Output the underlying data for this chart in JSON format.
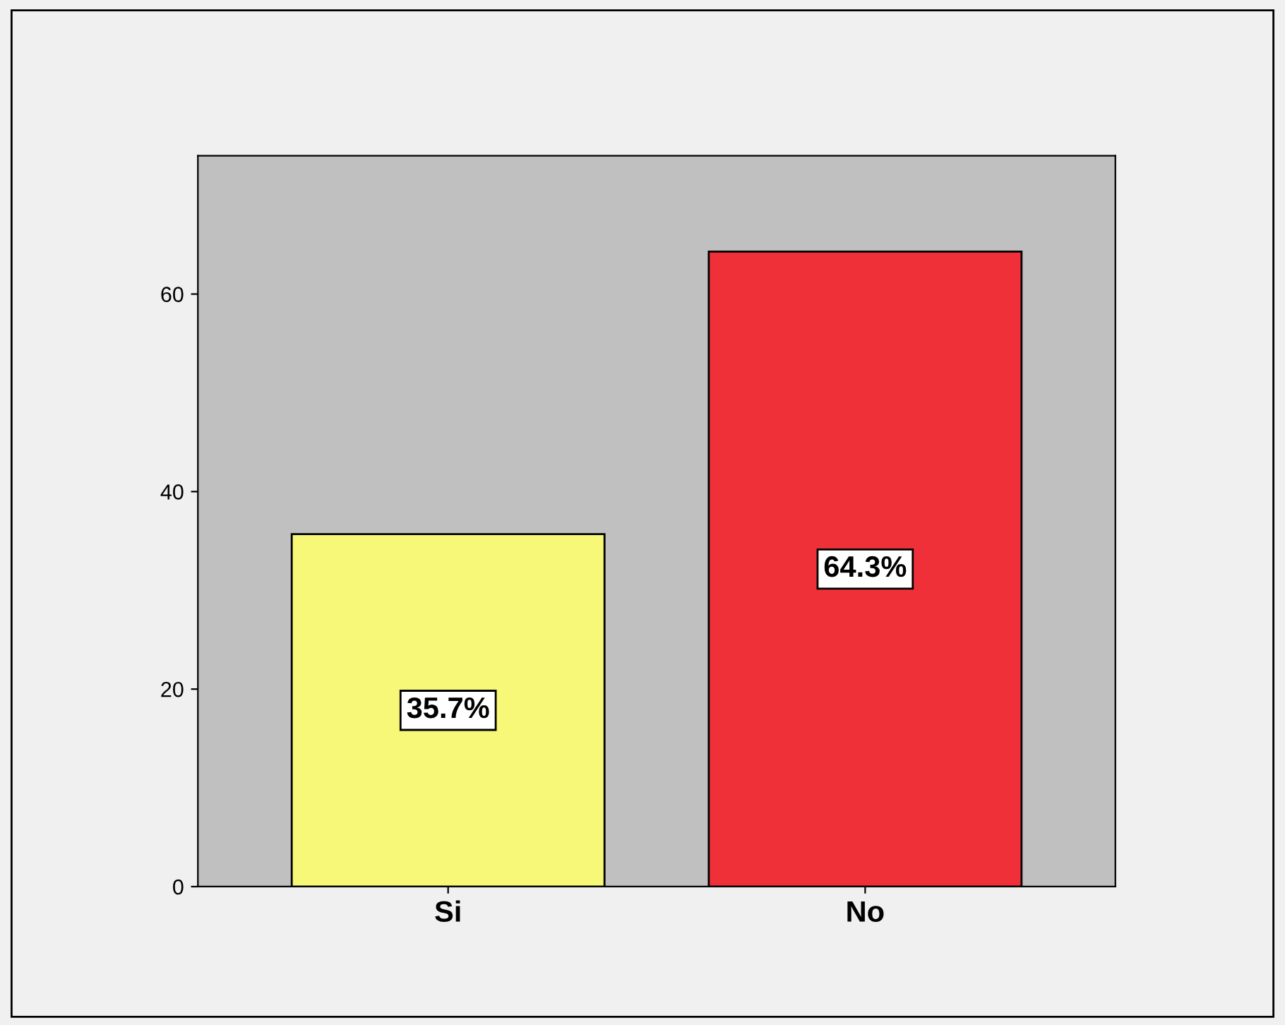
{
  "chart_data": {
    "type": "bar",
    "categories": [
      "Si",
      "No"
    ],
    "values": [
      35.7,
      64.3
    ],
    "colors": [
      "#f8f878",
      "#f03038"
    ],
    "value_labels": [
      "35.7%",
      "64.3%"
    ],
    "ylim": [
      0,
      74
    ],
    "yticks": [
      0,
      20,
      40,
      60
    ],
    "grid": false,
    "legend": false
  }
}
